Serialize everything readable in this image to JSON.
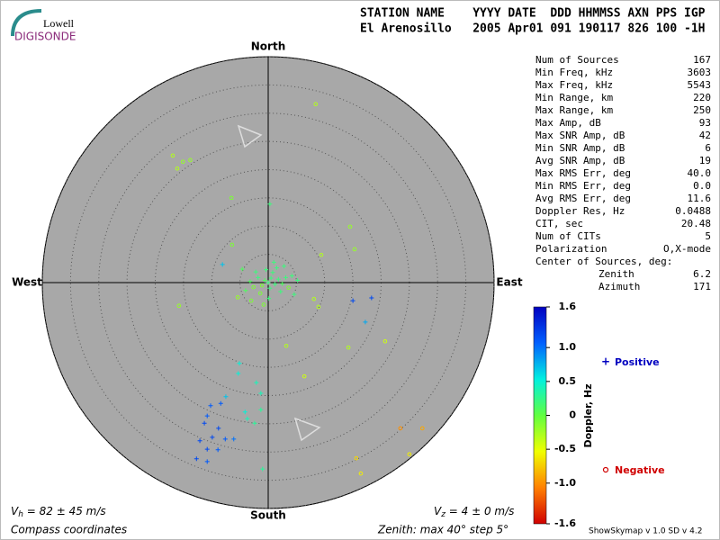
{
  "logo": {
    "top": "Lowell",
    "bottom": "DIGISONDE"
  },
  "header": [
    "STATION NAME    YYYY DATE  DDD HHMMSS AXN PPS IGP",
    "El Arenosillo   2005 Apr01 091 190117 826 100 -1H"
  ],
  "stats": [
    [
      "Num of Sources",
      "167"
    ],
    [
      "Min Freq, kHz",
      "3603"
    ],
    [
      "Max Freq, kHz",
      "5543"
    ],
    [
      "Min Range, km",
      "220"
    ],
    [
      "Max Range, km",
      "250"
    ],
    [
      "Max Amp, dB",
      "93"
    ],
    [
      "Max SNR Amp, dB",
      "42"
    ],
    [
      "Min SNR Amp, dB",
      "6"
    ],
    [
      "Avg SNR Amp, dB",
      "19"
    ],
    [
      "Max RMS Err, deg",
      "40.0"
    ],
    [
      "Min RMS Err, deg",
      "0.0"
    ],
    [
      "Avg RMS Err, deg",
      "11.6"
    ],
    [
      "Doppler Res, Hz",
      "0.0488"
    ],
    [
      "CIT, sec",
      "20.48"
    ],
    [
      "Num of CITs",
      "5"
    ],
    [
      "Polarization",
      "O,X-mode"
    ]
  ],
  "center": {
    "title": "Center of Sources, deg:",
    "rows": [
      [
        "Zenith",
        "6.2"
      ],
      [
        "Azimuth",
        "171"
      ]
    ]
  },
  "footer": {
    "vh": [
      "V",
      "h",
      " = 82 ± 45 m/s"
    ],
    "vz": [
      "V",
      "z",
      " = 4 ± 0 m/s"
    ],
    "coords": "Compass coordinates",
    "zenith": "Zenith: max 40°  step 5°",
    "version": "ShowSkymap v 1.0  SD v 4.2"
  },
  "chart_data": {
    "type": "skymap",
    "directions": {
      "north": "North",
      "south": "South",
      "east": "East",
      "west": "West"
    },
    "rlim": [
      0,
      40
    ],
    "rticks": [
      5,
      10,
      15,
      20,
      25,
      30,
      35,
      40
    ],
    "x": [
      8.4,
      -16.9,
      -15.1,
      -13.8,
      -16.1,
      -6.5,
      0.3,
      14.5,
      15.3,
      -6.4,
      9.4,
      -8.1,
      8.1,
      8.9,
      15.0,
      18.3,
      17.2,
      -15.8,
      20.7,
      14.2,
      3.2,
      -5.1,
      -5.3,
      6.4,
      -2.1,
      -1.3,
      -7.5,
      -10.2,
      -10.8,
      -8.4,
      -11.3,
      -8.8,
      -12.1,
      -9.9,
      -7.6,
      -10.8,
      -8.9,
      -12.7,
      -10.8,
      -6.1,
      -3.7,
      -2.4,
      -1.3,
      -4.1,
      -1.0,
      15.6,
      16.4,
      23.4,
      27.3,
      25.0,
      0,
      0.5,
      -0.6,
      1.2,
      -1.1,
      0.3,
      1.8,
      -1.8,
      2.5,
      -2.6,
      0.8,
      -0.4,
      1.5,
      -1.4,
      2.2,
      3.1,
      -3.2,
      0.1,
      3.6,
      -2.2,
      4.2,
      -4.0,
      1.0,
      -0.8,
      4.6,
      -4.6,
      2.8,
      -3.0,
      5.2,
      -5.4
    ],
    "y": [
      31.6,
      22.5,
      21.4,
      21.7,
      20.2,
      15.0,
      13.9,
      9.9,
      5.9,
      6.7,
      4.9,
      3.2,
      -2.9,
      -4.3,
      -3.2,
      -2.7,
      -7.0,
      -4.1,
      -10.4,
      -11.5,
      -11.2,
      -14.3,
      -16.1,
      -16.6,
      -17.7,
      -19.6,
      -20.2,
      -21.8,
      -23.6,
      -21.4,
      -24.9,
      -25.8,
      -28.0,
      -27.4,
      -27.7,
      -29.5,
      -29.6,
      -31.2,
      -31.7,
      -27.7,
      -24.1,
      -24.9,
      -22.5,
      -22.9,
      -33.0,
      -31.1,
      -33.8,
      -25.8,
      -25.8,
      -30.4,
      0,
      0.8,
      0.4,
      -0.3,
      -0.5,
      -1.0,
      0.6,
      0.9,
      -0.2,
      -0.8,
      1.8,
      2.3,
      2.6,
      -1.9,
      -1.6,
      0.9,
      0.2,
      -2.8,
      -0.9,
      1.9,
      1.2,
      -1.4,
      3.6,
      -3.9,
      -2.1,
      2.4,
      2.9,
      -3.2,
      0.4,
      -2.6
    ],
    "doppler": [
      -0.3,
      -0.3,
      -0.2,
      -0.2,
      -0.3,
      -0.1,
      0.2,
      -0.2,
      -0.2,
      -0.1,
      -0.3,
      0.7,
      -0.3,
      -0.3,
      1.2,
      1.2,
      0.8,
      -0.2,
      -0.4,
      -0.3,
      -0.3,
      0.5,
      0.5,
      -0.4,
      0.4,
      0.4,
      0.7,
      1.1,
      1.1,
      1.1,
      1.2,
      1.2,
      1.2,
      1.2,
      1.1,
      1.2,
      1.1,
      1.2,
      1.1,
      1.0,
      0.4,
      0.3,
      0.3,
      0.5,
      0.3,
      -0.7,
      -0.6,
      -1.0,
      -0.9,
      -0.6,
      0.2,
      0.2,
      0.1,
      0.2,
      -0.1,
      0.2,
      0.2,
      0.2,
      0.1,
      -0.1,
      0.2,
      0.2,
      0.2,
      -0.1,
      0.2,
      0.2,
      0.1,
      0.2,
      -0.1,
      0.2,
      0.2,
      0.1,
      0.2,
      -0.1,
      0.2,
      0.1,
      0.2,
      -0.1,
      0.2,
      -0.2
    ],
    "zlim": [
      -1.6,
      1.6
    ],
    "zticks": [
      1.6,
      {
        "value": 1,
        "label": "1.0"
      },
      0.5,
      0,
      -0.5,
      {
        "value": -1,
        "label": "-1.0"
      },
      -1.6
    ],
    "zlabel": "Doppler, Hz",
    "colorscale": [
      "#d00000",
      "#ff8000",
      "#f0ff00",
      "#60ff40",
      "#00f0e0",
      "#0060ff",
      "#0000c0"
    ],
    "legend": {
      "positive": "Positive",
      "negative": "Negative",
      "positive_color": "#0000c0",
      "negative_color": "#d00000"
    }
  }
}
